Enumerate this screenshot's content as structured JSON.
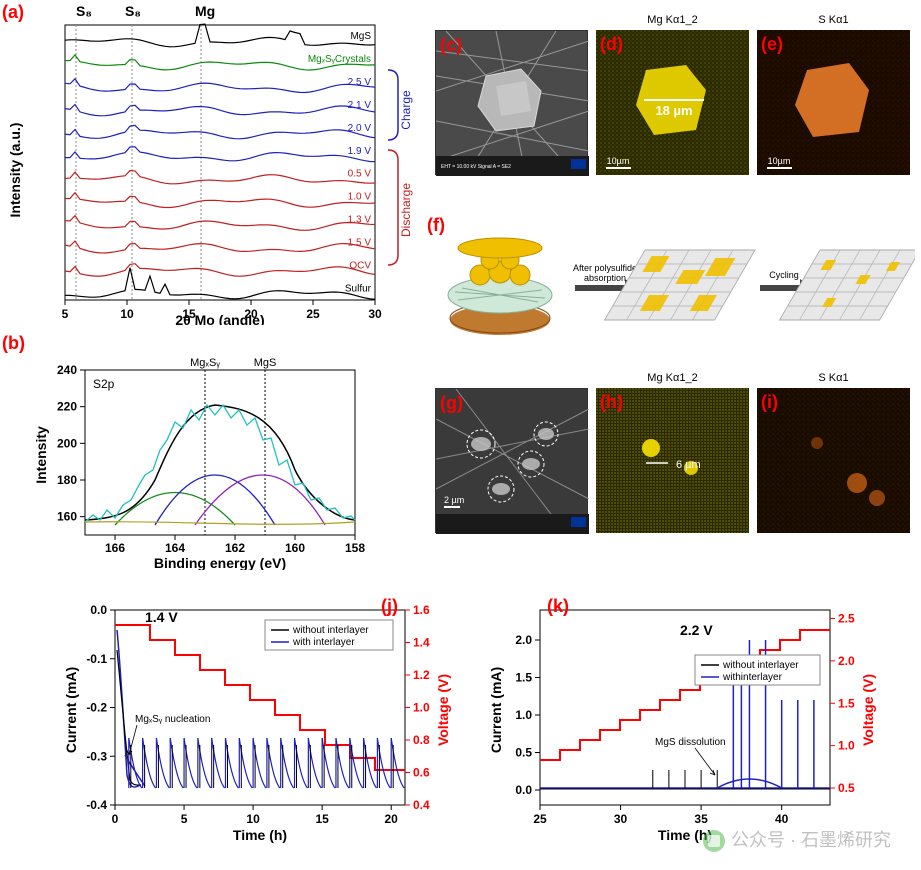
{
  "panelA": {
    "label": "(a)",
    "ylabel": "Intensity (a.u.)",
    "xlabel": "2θ Mo (angle)",
    "xlim": [
      5,
      30
    ],
    "xticks": [
      5,
      10,
      15,
      20,
      25,
      30
    ],
    "top_markers": [
      {
        "x": 5.8,
        "label": "S₈"
      },
      {
        "x": 10.4,
        "label": "S₈"
      },
      {
        "x": 16.0,
        "label": "Mg"
      }
    ],
    "traces": [
      {
        "name": "MgS",
        "color": "#000000",
        "offsetY": 0
      },
      {
        "name": "MgₓSᵧCrystals",
        "color": "#0a8a0a",
        "offsetY": 1
      },
      {
        "name": "2.5 V",
        "color": "#2020c0",
        "offsetY": 2
      },
      {
        "name": "2.1 V",
        "color": "#2020c0",
        "offsetY": 3
      },
      {
        "name": "2.0 V",
        "color": "#2020c0",
        "offsetY": 4
      },
      {
        "name": "1.9 V",
        "color": "#2020c0",
        "offsetY": 5
      },
      {
        "name": "0.5 V",
        "color": "#c02020",
        "offsetY": 6
      },
      {
        "name": "1.0 V",
        "color": "#c02020",
        "offsetY": 7
      },
      {
        "name": "1.3 V",
        "color": "#c02020",
        "offsetY": 8
      },
      {
        "name": "1.5 V",
        "color": "#c02020",
        "offsetY": 9
      },
      {
        "name": "OCV",
        "color": "#c02020",
        "offsetY": 10
      },
      {
        "name": "Sulfur",
        "color": "#000000",
        "offsetY": 11
      }
    ],
    "side_groups": [
      {
        "label": "Charge",
        "color": "#2020c0"
      },
      {
        "label": "Discharge",
        "color": "#c02020"
      }
    ]
  },
  "panelB": {
    "label": "(b)",
    "title": "S2p",
    "ylabel": "Intensity",
    "xlabel": "Binding energy (eV)",
    "xlim": [
      167,
      158
    ],
    "xticks": [
      166,
      164,
      162,
      160,
      158
    ],
    "ylim": [
      150,
      240
    ],
    "yticks": [
      160,
      180,
      200,
      220,
      240
    ],
    "markers": [
      {
        "x": 163,
        "label": "MgₓSᵧ"
      },
      {
        "x": 161,
        "label": "MgS"
      }
    ],
    "curves": [
      {
        "color": "#20c0c0",
        "name": "raw"
      },
      {
        "color": "#000000",
        "name": "fit"
      },
      {
        "color": "#1a8a1a",
        "name": "c1"
      },
      {
        "color": "#2020c0",
        "name": "c2"
      },
      {
        "color": "#9020c0",
        "name": "c3"
      },
      {
        "color": "#b0a020",
        "name": "bg"
      }
    ]
  },
  "images": {
    "c": {
      "label": "(c)",
      "type": "SEM",
      "bg": "#505050"
    },
    "d": {
      "label": "(d)",
      "title": "Mg Kα1_2",
      "bg": "#3a3a00",
      "map": "#d1c100",
      "annotation": "18 µm",
      "scalebar": "10µm"
    },
    "e": {
      "label": "(e)",
      "title": "S Kα1",
      "bg": "#2a1200",
      "map": "#e07a20",
      "scalebar": "10µm"
    },
    "g": {
      "label": "(g)",
      "type": "SEM",
      "bg": "#454545",
      "scalebar": "2 µm"
    },
    "h": {
      "label": "(h)",
      "title": "Mg Kα1_2",
      "bg": "#333300",
      "map": "#d1c100",
      "annotation": "6 µm"
    },
    "i": {
      "label": "(i)",
      "title": "S Kα1",
      "bg": "#261000",
      "map": "#d06820"
    }
  },
  "panelF": {
    "label": "(f)",
    "arrows": [
      "After polysulfide\\nabsorption",
      "Cycling"
    ],
    "sphere_color": "#f0c000",
    "fiber_color": "#a0c8b0",
    "anode_color": "#c07a30",
    "sheet": "#e0e0e0"
  },
  "panelJ": {
    "label": "(j)",
    "ylabel": "Current (mA)",
    "y2label": "Voltage (V)",
    "xlabel": "Time (h)",
    "annotation": "1.4 V",
    "note": "MgₓSᵧ nucleation",
    "legend": [
      "without interlayer",
      "with interlayer"
    ],
    "legend_colors": [
      "#000000",
      "#2020c0"
    ],
    "xlim": [
      0,
      21
    ],
    "xticks": [
      0,
      5,
      10,
      15,
      20
    ],
    "ylim": [
      0.05,
      -0.45
    ],
    "yticks": [
      "-0.4",
      "-0.3",
      "-0.2",
      "-0.1",
      "0.0"
    ],
    "y2lim": [
      0.4,
      1.6
    ],
    "y2ticks": [
      "0.4",
      "0.6",
      "0.8",
      "1.0",
      "1.2",
      "1.4",
      "1.6"
    ],
    "voltage_color": "#ff0000",
    "curve_color": "#2020c0"
  },
  "panelK": {
    "label": "(k)",
    "ylabel": "Current (mA)",
    "y2label": "Voltage (V)",
    "xlabel": "Time (h)",
    "annotation": "2.2 V",
    "note": "MgS dissolution",
    "legend": [
      "without interlayer",
      "withinterlayer"
    ],
    "legend_colors": [
      "#000000",
      "#2020c0"
    ],
    "xlim": [
      25,
      43
    ],
    "xticks": [
      25,
      30,
      35,
      40
    ],
    "ylim": [
      -0.2,
      2.4
    ],
    "yticks": [
      "0.0",
      "0.5",
      "1.0",
      "1.5",
      "2.0"
    ],
    "y2lim": [
      0.3,
      2.6
    ],
    "y2ticks": [
      "0.5",
      "1.0",
      "1.5",
      "2.0",
      "2.5"
    ],
    "voltage_color": "#ff0000",
    "curve_color": "#2020c0"
  },
  "watermark": "公众号 · 石墨烯研究"
}
